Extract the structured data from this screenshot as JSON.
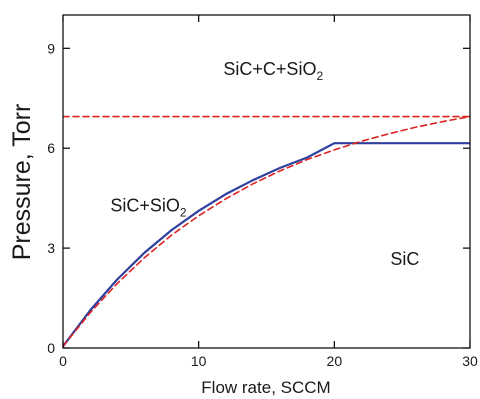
{
  "chart_data": {
    "type": "line",
    "xlabel": "Flow rate, SCCM",
    "ylabel": "Pressure, Torr",
    "xlim": [
      0,
      30
    ],
    "ylim": [
      0,
      10
    ],
    "x_ticks": [
      0,
      10,
      20,
      30
    ],
    "y_ticks": [
      0,
      3,
      6,
      9
    ],
    "grid": false,
    "legend": "none",
    "series": [
      {
        "color": "#2f3f9e",
        "style": "solid",
        "x": [
          0,
          2,
          4,
          6,
          8,
          10,
          12,
          14,
          16,
          18,
          20,
          22,
          24,
          26,
          28,
          30
        ],
        "y": [
          0.05,
          1.13,
          2.06,
          2.86,
          3.54,
          4.12,
          4.62,
          5.04,
          5.41,
          5.72,
          6.15,
          6.15,
          6.15,
          6.15,
          6.15,
          6.15
        ]
      },
      {
        "color": "#dd2222",
        "style": "dashed",
        "x": [
          0,
          2,
          4,
          6,
          8,
          10,
          12,
          14,
          16,
          18,
          20,
          22,
          24,
          26,
          28,
          30
        ],
        "y": [
          0.05,
          1.06,
          1.94,
          2.71,
          3.39,
          3.97,
          4.48,
          4.93,
          5.32,
          5.66,
          5.95,
          6.21,
          6.43,
          6.63,
          6.8,
          6.95
        ]
      },
      {
        "color": "#dd2222",
        "style": "dashed",
        "x": [
          0,
          30
        ],
        "y": [
          6.95,
          6.95
        ]
      }
    ],
    "annotations": [
      {
        "x": 15.5,
        "y": 8.2,
        "main": "SiC+C+SiO",
        "sub": "2"
      },
      {
        "x": 6.3,
        "y": 4.1,
        "main": "SiC+SiO",
        "sub": "2"
      },
      {
        "x": 25.2,
        "y": 2.5,
        "main": "SiC",
        "sub": ""
      }
    ]
  }
}
